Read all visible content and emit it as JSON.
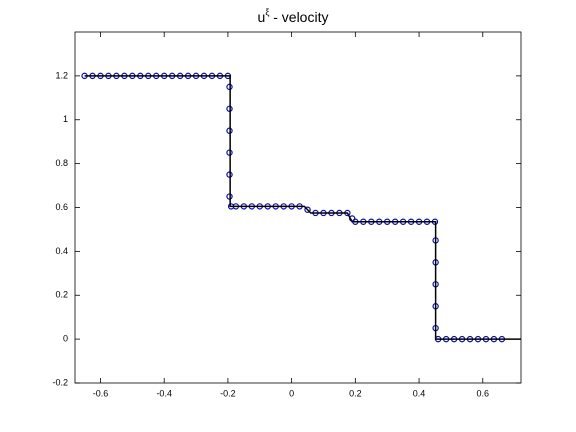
{
  "chart_data": {
    "type": "line",
    "title": [
      "u",
      "ξ",
      " - velocity"
    ],
    "xlim": [
      -0.68,
      0.72
    ],
    "ylim": [
      -0.2,
      1.4
    ],
    "xticks": [
      -0.6,
      -0.4,
      -0.2,
      0,
      0.2,
      0.4,
      0.6
    ],
    "yticks": [
      -0.2,
      0,
      0.2,
      0.4,
      0.6,
      0.8,
      1,
      1.2
    ],
    "grid": false,
    "series": [
      {
        "kind": "line",
        "color": "#000000",
        "x": [
          -0.65,
          -0.193,
          -0.193,
          0.04,
          0.06,
          0.175,
          0.19,
          0.452,
          0.452,
          0.72
        ],
        "values": [
          1.2,
          1.2,
          0.605,
          0.605,
          0.575,
          0.575,
          0.535,
          0.535,
          0,
          0
        ]
      },
      {
        "kind": "circles",
        "color": "#0a0aa8",
        "x": [
          -0.65,
          -0.625,
          -0.6,
          -0.575,
          -0.55,
          -0.525,
          -0.5,
          -0.475,
          -0.45,
          -0.425,
          -0.4,
          -0.375,
          -0.35,
          -0.325,
          -0.3,
          -0.275,
          -0.25,
          -0.225,
          -0.2,
          -0.195,
          -0.195,
          -0.195,
          -0.195,
          -0.195,
          -0.195,
          -0.19,
          -0.175,
          -0.15,
          -0.125,
          -0.1,
          -0.075,
          -0.05,
          -0.025,
          0,
          0.025,
          0.05,
          0.075,
          0.1,
          0.125,
          0.15,
          0.175,
          0.19,
          0.2,
          0.225,
          0.25,
          0.275,
          0.3,
          0.325,
          0.35,
          0.375,
          0.4,
          0.425,
          0.45,
          0.452,
          0.452,
          0.452,
          0.452,
          0.452,
          0.46,
          0.485,
          0.51,
          0.535,
          0.56,
          0.585,
          0.61,
          0.635,
          0.66
        ],
        "values": [
          1.2,
          1.2,
          1.2,
          1.2,
          1.2,
          1.2,
          1.2,
          1.2,
          1.2,
          1.2,
          1.2,
          1.2,
          1.2,
          1.2,
          1.2,
          1.2,
          1.2,
          1.2,
          1.2,
          1.15,
          1.05,
          0.95,
          0.85,
          0.75,
          0.65,
          0.605,
          0.605,
          0.605,
          0.605,
          0.605,
          0.605,
          0.605,
          0.605,
          0.605,
          0.605,
          0.59,
          0.575,
          0.575,
          0.575,
          0.575,
          0.575,
          0.55,
          0.535,
          0.535,
          0.535,
          0.535,
          0.535,
          0.535,
          0.535,
          0.535,
          0.535,
          0.535,
          0.535,
          0.45,
          0.35,
          0.25,
          0.15,
          0.05,
          0,
          0,
          0,
          0,
          0,
          0,
          0,
          0,
          0
        ]
      }
    ]
  }
}
